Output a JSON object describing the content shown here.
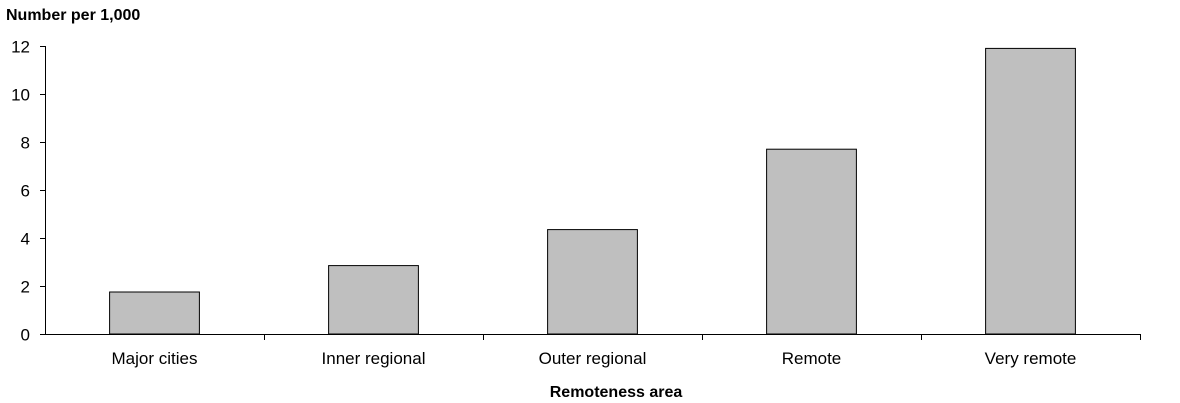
{
  "chart_data": {
    "type": "bar",
    "title": "",
    "ylabel": "Number per 1,000",
    "xlabel": "Remoteness area",
    "categories": [
      "Major cities",
      "Inner regional",
      "Outer regional",
      "Remote",
      "Very remote"
    ],
    "values": [
      1.75,
      2.85,
      4.35,
      7.7,
      11.9
    ],
    "ylim": [
      0,
      12
    ],
    "yticks": [
      0,
      2,
      4,
      6,
      8,
      10,
      12
    ],
    "grid": false,
    "legend": "none",
    "bar_color": "#bfbfbf",
    "bar_edge_color": "#000000"
  }
}
